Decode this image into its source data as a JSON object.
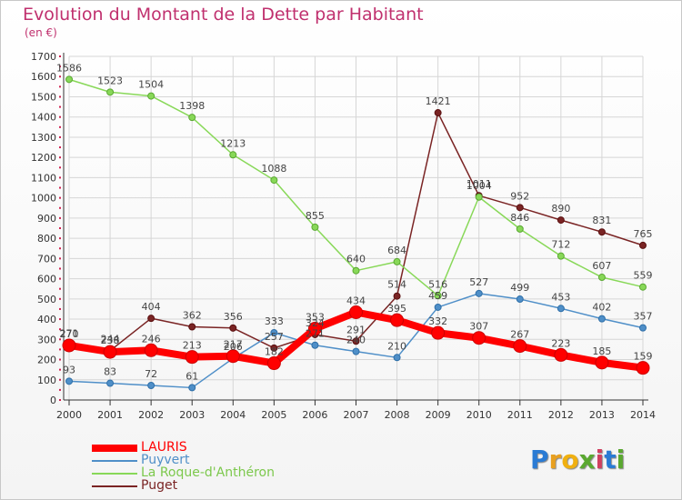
{
  "title": "Evolution du Montant de la Dette par Habitant",
  "subtitle": "(en €)",
  "logo": {
    "letters": [
      "P",
      "r",
      "o",
      "x",
      "i",
      "t",
      "i"
    ],
    "colors": [
      "#2a7bd4",
      "#e8a020",
      "#f0b010",
      "#5aa830",
      "#d04060",
      "#2a7bd4",
      "#5aa830"
    ]
  },
  "chart_data": {
    "type": "line",
    "title": "Evolution du Montant de la Dette par Habitant",
    "ylabel": "(en €)",
    "xlabel": "",
    "x": [
      2000,
      2001,
      2002,
      2003,
      2004,
      2005,
      2006,
      2007,
      2008,
      2009,
      2010,
      2011,
      2012,
      2013,
      2014
    ],
    "ylim": [
      0,
      1700
    ],
    "yticks": [
      0,
      100,
      200,
      300,
      400,
      500,
      600,
      700,
      800,
      900,
      1000,
      1100,
      1200,
      1300,
      1400,
      1500,
      1600,
      1700
    ],
    "grid": true,
    "legend": "bottom-left",
    "series": [
      {
        "name": "LAURIS",
        "color": "#ff0000",
        "values": [
          270,
          238,
          246,
          213,
          217,
          182,
          353,
          434,
          395,
          332,
          307,
          267,
          223,
          185,
          159
        ]
      },
      {
        "name": "Puyvert",
        "color": "#4f8fc8",
        "values": [
          93,
          83,
          72,
          61,
          206,
          333,
          271,
          240,
          210,
          459,
          527,
          499,
          453,
          402,
          357
        ]
      },
      {
        "name": "La Roque-d'Anthéron",
        "color": "#88d858",
        "values": [
          1586,
          1523,
          1504,
          1398,
          1213,
          1088,
          855,
          640,
          684,
          516,
          1004,
          846,
          712,
          607,
          559
        ]
      },
      {
        "name": "Puget",
        "color": "#7a2424",
        "values": [
          271,
          244,
          404,
          362,
          356,
          257,
          324,
          291,
          514,
          1421,
          1011,
          952,
          890,
          831,
          765
        ]
      }
    ]
  }
}
